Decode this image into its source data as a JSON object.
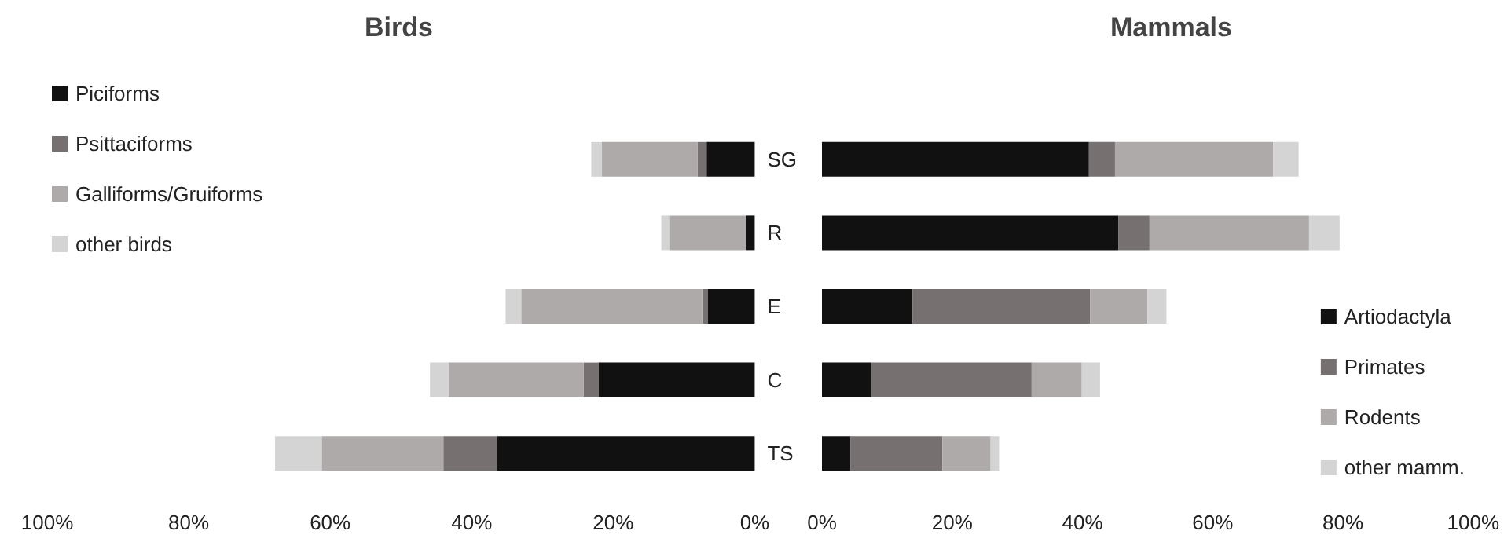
{
  "chart_data": [
    {
      "type": "bar",
      "title": "Birds",
      "orientation": "horizontal",
      "stacked": true,
      "legend": "top left",
      "categories": [
        "SG",
        "R",
        "E",
        "C",
        "TS"
      ],
      "series": [
        {
          "name": "Piciforms",
          "color": "#111111",
          "values": [
            6.8,
            1.2,
            6.6,
            22.1,
            36.4
          ]
        },
        {
          "name": "Psittaciforms",
          "color": "#767070",
          "values": [
            1.3,
            0,
            0.7,
            2.1,
            7.6
          ]
        },
        {
          "name": "Galliforms/Gruiforms",
          "color": "#aeaaa9",
          "values": [
            13.5,
            10.8,
            25.7,
            19.1,
            17.2
          ]
        },
        {
          "name": "other birds",
          "color": "#d4d4d4",
          "values": [
            1.5,
            1.2,
            2.2,
            2.6,
            6.6
          ]
        }
      ],
      "xlim": [
        100,
        0
      ],
      "xticks": [
        {
          "value": 100,
          "label": "100%"
        },
        {
          "value": 80,
          "label": "80%"
        },
        {
          "value": 60,
          "label": "60%"
        },
        {
          "value": 40,
          "label": "40%"
        },
        {
          "value": 20,
          "label": "20%"
        },
        {
          "value": 0,
          "label": "0%"
        }
      ]
    },
    {
      "type": "bar",
      "title": "Mammals",
      "orientation": "horizontal",
      "stacked": true,
      "legend": "right",
      "categories": [
        null,
        null,
        null,
        null,
        null
      ],
      "series": [
        {
          "name": "Artiodactyla",
          "color": "#111111",
          "values": [
            41.0,
            45.5,
            13.9,
            7.5,
            4.4
          ]
        },
        {
          "name": "Primates",
          "color": "#767070",
          "values": [
            4.0,
            4.8,
            27.3,
            24.7,
            14.1
          ]
        },
        {
          "name": "Rodents",
          "color": "#aeaaa9",
          "values": [
            24.3,
            24.5,
            8.8,
            7.7,
            7.4
          ]
        },
        {
          "name": "other mamm.",
          "color": "#d4d4d4",
          "values": [
            3.9,
            4.7,
            2.9,
            2.8,
            1.3
          ]
        }
      ],
      "xlim": [
        0,
        100
      ],
      "xticks": [
        {
          "value": 0,
          "label": "0%"
        },
        {
          "value": 20,
          "label": "20%"
        },
        {
          "value": 40,
          "label": "40%"
        },
        {
          "value": 60,
          "label": "60%"
        },
        {
          "value": 80,
          "label": "80%"
        },
        {
          "value": 100,
          "label": "100%"
        }
      ]
    }
  ]
}
